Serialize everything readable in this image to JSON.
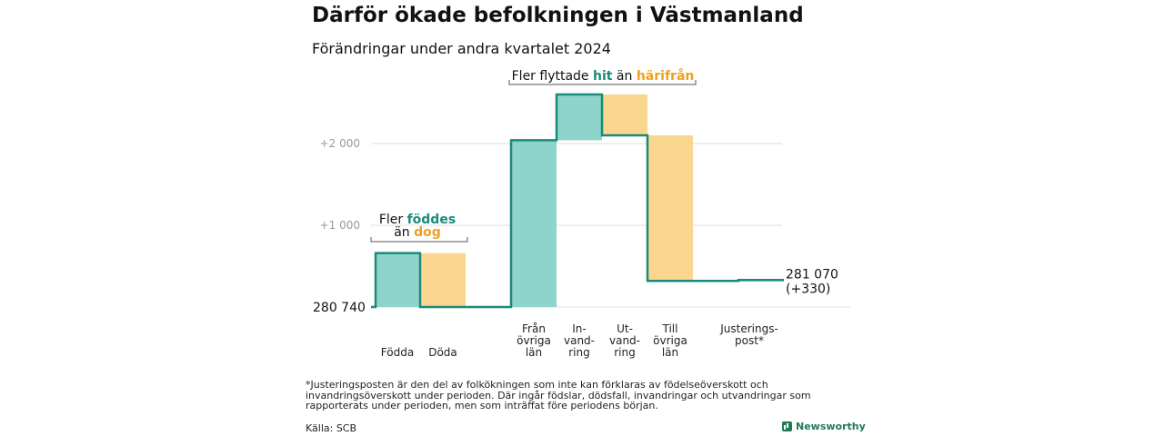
{
  "title": "Därför ökade befolkningen i Västmanland",
  "subtitle": "Förändringar under andra kvartalet 2024",
  "chart_data": {
    "type": "waterfall",
    "start_value": 280740,
    "start_label": "280  740",
    "end_value": 281070,
    "end_label": "281 070",
    "end_change_label": "(+330)",
    "y_ticks": [
      {
        "value": 2000,
        "label": "+2   000"
      },
      {
        "value": 1000,
        "label": "+1   000"
      }
    ],
    "ylim": [
      0,
      2600
    ],
    "steps": [
      {
        "label_lines": [
          "Födda"
        ],
        "from": 0,
        "to": 660,
        "color": "#8fd4cb"
      },
      {
        "label_lines": [
          "Döda"
        ],
        "from": 660,
        "to": 0,
        "color": "#fad68f"
      },
      {
        "label_lines": [
          "Från",
          "övriga",
          "län"
        ],
        "from": 0,
        "to": 2040,
        "color": "#8fd4cb"
      },
      {
        "label_lines": [
          "In-",
          "vand-",
          "ring"
        ],
        "from": 2040,
        "to": 2600,
        "color": "#8fd4cb"
      },
      {
        "label_lines": [
          "Ut-",
          "vand-",
          "ring"
        ],
        "from": 2600,
        "to": 2100,
        "color": "#fad68f"
      },
      {
        "label_lines": [
          "Till",
          "övriga",
          "län"
        ],
        "from": 2100,
        "to": 320,
        "color": "#fad68f"
      },
      {
        "label_lines": [
          "Justerings-",
          "post*"
        ],
        "from": 320,
        "to": 330,
        "color": "#8fd4cb"
      }
    ],
    "annotations": [
      {
        "prefix": "Fler ",
        "highlight1": "föddes",
        "line2_prefix": "än ",
        "highlight2": "dog"
      },
      {
        "prefix": "Fler flyttade ",
        "highlight1": "hit",
        "middle": "  än ",
        "highlight2": "härifrån"
      }
    ],
    "colors": {
      "positive": "#8fd4cb",
      "negative": "#fad68f",
      "line": "#1a8a7a",
      "positive_text": "#1a8a7a",
      "negative_text": "#f0a020"
    }
  },
  "footnote": "*Justeringsposten är den del av folkökningen som inte kan förklaras av födelseöverskott och invandringsöverskott under perioden. Där ingår födslar, dödsfall, invandringar och utvandringar som rapporterats under perioden, men som inträffat före periodens början.",
  "source": "Källa: SCB",
  "logo_text": "Newsworthy"
}
